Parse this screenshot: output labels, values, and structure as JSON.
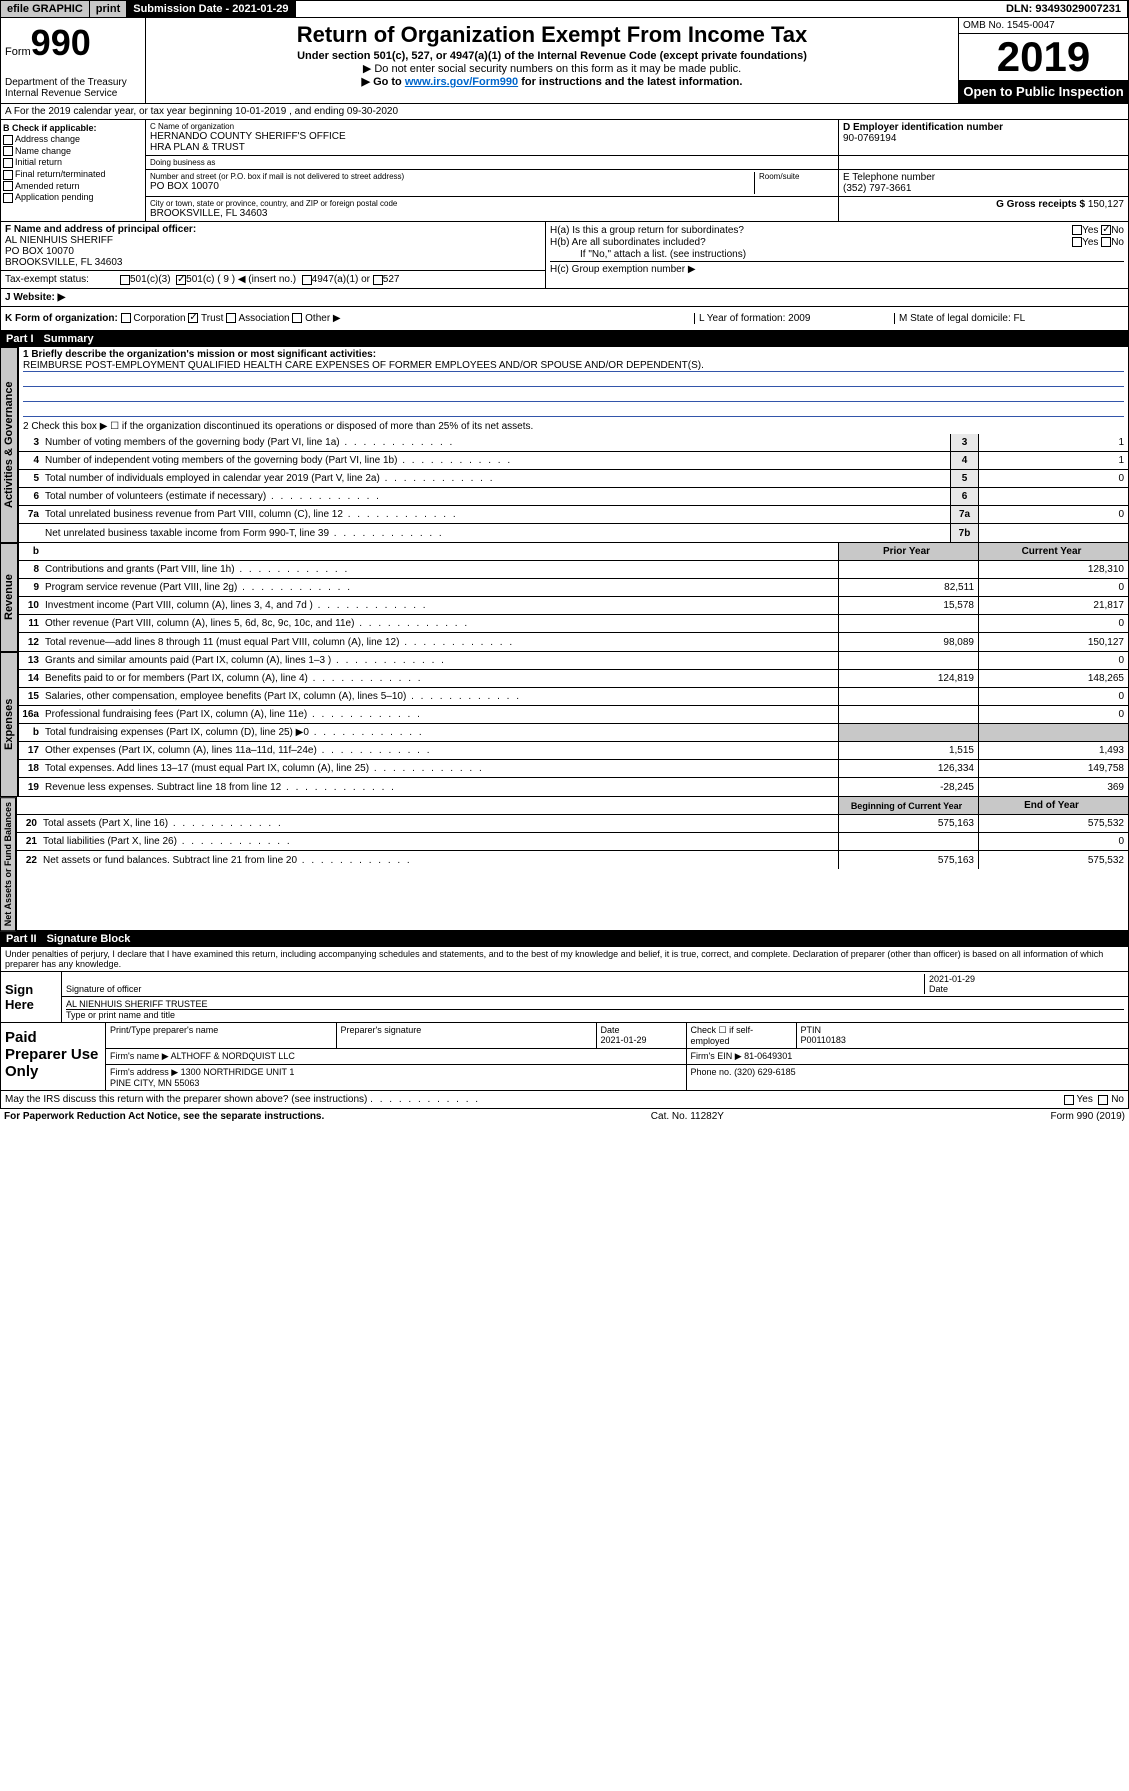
{
  "topbar": {
    "efile": "efile GRAPHIC",
    "print": "print",
    "subdate": "Submission Date - 2021-01-29",
    "dln": "DLN: 93493029007231"
  },
  "header": {
    "form_label": "Form",
    "form_no": "990",
    "dept": "Department of the Treasury\nInternal Revenue Service",
    "title": "Return of Organization Exempt From Income Tax",
    "sub1": "Under section 501(c), 527, or 4947(a)(1) of the Internal Revenue Code (except private foundations)",
    "sub2": "▶ Do not enter social security numbers on this form as it may be made public.",
    "sub3_pre": "▶ Go to ",
    "sub3_link": "www.irs.gov/Form990",
    "sub3_post": " for instructions and the latest information.",
    "omb": "OMB No. 1545-0047",
    "year": "2019",
    "otp": "Open to Public Inspection"
  },
  "row_a": "A For the 2019 calendar year, or tax year beginning 10-01-2019    , and ending 09-30-2020",
  "col_b": {
    "hdr": "B Check if applicable:",
    "items": [
      "Address change",
      "Name change",
      "Initial return",
      "Final return/terminated",
      "Amended return",
      "Application pending"
    ]
  },
  "cd": {
    "c_label": "C Name of organization",
    "c_name": "HERNANDO COUNTY SHERIFF'S OFFICE\nHRA PLAN & TRUST",
    "dba_label": "Doing business as",
    "addr_label": "Number and street (or P.O. box if mail is not delivered to street address)",
    "addr": "PO BOX 10070",
    "room_label": "Room/suite",
    "city_label": "City or town, state or province, country, and ZIP or foreign postal code",
    "city": "BROOKSVILLE, FL  34603",
    "d_label": "D Employer identification number",
    "d_val": "90-0769194",
    "e_label": "E Telephone number",
    "e_val": "(352) 797-3661",
    "g_label": "G Gross receipts $",
    "g_val": "150,127"
  },
  "f": {
    "label": "F  Name and address of principal officer:",
    "name": "AL NIENHUIS SHERIFF",
    "addr1": "PO BOX 10070",
    "addr2": "BROOKSVILLE, FL  34603"
  },
  "h": {
    "a": "H(a)  Is this a group return for subordinates?",
    "b": "H(b)  Are all subordinates included?",
    "note": "If \"No,\" attach a list. (see instructions)",
    "c": "H(c)  Group exemption number ▶",
    "yes": "Yes",
    "no": "No"
  },
  "tax_status": {
    "label": "Tax-exempt status:",
    "o1": "501(c)(3)",
    "o2": "501(c) ( 9 ) ◀ (insert no.)",
    "o3": "4947(a)(1) or",
    "o4": "527"
  },
  "j": {
    "label": "J   Website: ▶"
  },
  "k": {
    "label": "K Form of organization:",
    "opts": [
      "Corporation",
      "Trust",
      "Association",
      "Other ▶"
    ],
    "l": "L Year of formation: 2009",
    "m": "M State of legal domicile: FL"
  },
  "part1": {
    "num": "Part I",
    "title": "Summary"
  },
  "mission": {
    "q1": "1  Briefly describe the organization's mission or most significant activities:",
    "text": "REIMBURSE POST-EMPLOYMENT QUALIFIED HEALTH CARE EXPENSES OF FORMER EMPLOYEES AND/OR SPOUSE AND/OR DEPENDENT(S).",
    "q2": "2   Check this box ▶ ☐  if the organization discontinued its operations or disposed of more than 25% of its net assets."
  },
  "gov_lines": [
    {
      "n": "3",
      "d": "Number of voting members of the governing body (Part VI, line 1a)",
      "b": "3",
      "v": "1"
    },
    {
      "n": "4",
      "d": "Number of independent voting members of the governing body (Part VI, line 1b)",
      "b": "4",
      "v": "1"
    },
    {
      "n": "5",
      "d": "Total number of individuals employed in calendar year 2019 (Part V, line 2a)",
      "b": "5",
      "v": "0"
    },
    {
      "n": "6",
      "d": "Total number of volunteers (estimate if necessary)",
      "b": "6",
      "v": ""
    },
    {
      "n": "7a",
      "d": "Total unrelated business revenue from Part VIII, column (C), line 12",
      "b": "7a",
      "v": "0"
    },
    {
      "n": "",
      "d": "Net unrelated business taxable income from Form 990-T, line 39",
      "b": "7b",
      "v": ""
    }
  ],
  "rev_hdr": {
    "b": "b",
    "py": "Prior Year",
    "cy": "Current Year"
  },
  "rev_lines": [
    {
      "n": "8",
      "d": "Contributions and grants (Part VIII, line 1h)",
      "py": "",
      "cy": "128,310"
    },
    {
      "n": "9",
      "d": "Program service revenue (Part VIII, line 2g)",
      "py": "82,511",
      "cy": "0"
    },
    {
      "n": "10",
      "d": "Investment income (Part VIII, column (A), lines 3, 4, and 7d )",
      "py": "15,578",
      "cy": "21,817"
    },
    {
      "n": "11",
      "d": "Other revenue (Part VIII, column (A), lines 5, 6d, 8c, 9c, 10c, and 11e)",
      "py": "",
      "cy": "0"
    },
    {
      "n": "12",
      "d": "Total revenue—add lines 8 through 11 (must equal Part VIII, column (A), line 12)",
      "py": "98,089",
      "cy": "150,127"
    }
  ],
  "exp_lines": [
    {
      "n": "13",
      "d": "Grants and similar amounts paid (Part IX, column (A), lines 1–3 )",
      "py": "",
      "cy": "0"
    },
    {
      "n": "14",
      "d": "Benefits paid to or for members (Part IX, column (A), line 4)",
      "py": "124,819",
      "cy": "148,265"
    },
    {
      "n": "15",
      "d": "Salaries, other compensation, employee benefits (Part IX, column (A), lines 5–10)",
      "py": "",
      "cy": "0"
    },
    {
      "n": "16a",
      "d": "Professional fundraising fees (Part IX, column (A), line 11e)",
      "py": "",
      "cy": "0"
    },
    {
      "n": "b",
      "d": "Total fundraising expenses (Part IX, column (D), line 25) ▶0",
      "py": "",
      "cy": "",
      "shade": true
    },
    {
      "n": "17",
      "d": "Other expenses (Part IX, column (A), lines 11a–11d, 11f–24e)",
      "py": "1,515",
      "cy": "1,493"
    },
    {
      "n": "18",
      "d": "Total expenses. Add lines 13–17 (must equal Part IX, column (A), line 25)",
      "py": "126,334",
      "cy": "149,758"
    },
    {
      "n": "19",
      "d": "Revenue less expenses. Subtract line 18 from line 12",
      "py": "-28,245",
      "cy": "369"
    }
  ],
  "na_hdr": {
    "py": "Beginning of Current Year",
    "cy": "End of Year"
  },
  "na_lines": [
    {
      "n": "20",
      "d": "Total assets (Part X, line 16)",
      "py": "575,163",
      "cy": "575,532"
    },
    {
      "n": "21",
      "d": "Total liabilities (Part X, line 26)",
      "py": "",
      "cy": "0"
    },
    {
      "n": "22",
      "d": "Net assets or fund balances. Subtract line 21 from line 20",
      "py": "575,163",
      "cy": "575,532"
    }
  ],
  "vlabels": {
    "gov": "Activities & Governance",
    "rev": "Revenue",
    "exp": "Expenses",
    "na": "Net Assets or Fund Balances"
  },
  "part2": {
    "num": "Part II",
    "title": "Signature Block"
  },
  "penalties": "Under penalties of perjury, I declare that I have examined this return, including accompanying schedules and statements, and to the best of my knowledge and belief, it is true, correct, and complete. Declaration of preparer (other than officer) is based on all information of which preparer has any knowledge.",
  "sign": {
    "label": "Sign Here",
    "sig_of": "Signature of officer",
    "date": "2021-01-29",
    "date_lbl": "Date",
    "name": "AL NIENHUIS SHERIFF  TRUSTEE",
    "name_lbl": "Type or print name and title"
  },
  "paid": {
    "label": "Paid Preparer Use Only",
    "h1": "Print/Type preparer's name",
    "h2": "Preparer's signature",
    "h3": "Date",
    "h3v": "2021-01-29",
    "h4": "Check ☐ if self-employed",
    "h5": "PTIN",
    "h5v": "P00110183",
    "firm_lbl": "Firm's name    ▶",
    "firm": "ALTHOFF & NORDQUIST LLC",
    "ein_lbl": "Firm's EIN ▶",
    "ein": "81-0649301",
    "addr_lbl": "Firm's address ▶",
    "addr": "1300 NORTHRIDGE UNIT 1\nPINE CITY, MN  55063",
    "ph_lbl": "Phone no.",
    "ph": "(320) 629-6185"
  },
  "discuss": "May the IRS discuss this return with the preparer shown above? (see instructions)",
  "footer": {
    "left": "For Paperwork Reduction Act Notice, see the separate instructions.",
    "mid": "Cat. No. 11282Y",
    "right": "Form 990 (2019)"
  }
}
